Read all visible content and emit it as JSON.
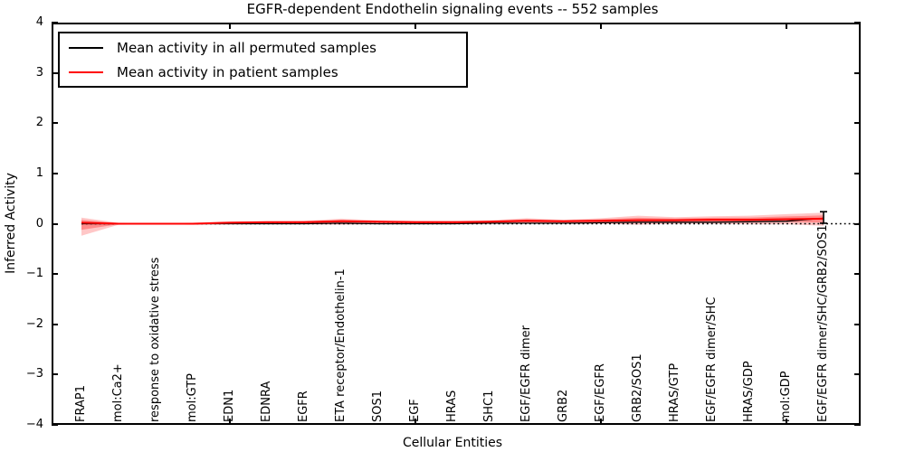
{
  "title": "EGFR-dependent Endothelin signaling events -- 552 samples",
  "axes": {
    "ylabel": "Inferred Activity",
    "xlabel": "Cellular Entities",
    "yticks": [
      "4",
      "3",
      "2",
      "1",
      "0",
      "−1",
      "−2",
      "−3",
      "−4"
    ]
  },
  "legend": {
    "items": [
      {
        "label": "Mean activity in all permuted samples",
        "color": "#000000"
      },
      {
        "label": "Mean activity in patient samples",
        "color": "#ff0000"
      }
    ]
  },
  "colors": {
    "patient_line": "#ff0000",
    "permuted_line": "#000000",
    "band_fill": "#ff0000",
    "axis": "#000000",
    "background": "#ffffff"
  },
  "chart_data": {
    "type": "line",
    "title": "EGFR-dependent Endothelin signaling events -- 552 samples",
    "xlabel": "Cellular Entities",
    "ylabel": "Inferred Activity",
    "ylim": [
      -4,
      4
    ],
    "ytick_values": [
      4,
      3,
      2,
      1,
      0,
      -1,
      -2,
      -3,
      -4
    ],
    "grid": false,
    "legend_position": "upper left",
    "categories": [
      "FRAP1",
      "mol:Ca2+",
      "response to oxidative stress",
      "mol:GTP",
      "EDN1",
      "EDNRA",
      "EGFR",
      "ETA receptor/Endothelin-1",
      "SOS1",
      "EGF",
      "HRAS",
      "SHC1",
      "EGF/EGFR dimer",
      "GRB2",
      "EGF/EGFR",
      "GRB2/SOS1",
      "HRAS/GTP",
      "EGF/EGFR dimer/SHC",
      "HRAS/GDP",
      "mol:GDP",
      "EGF/EGFR dimer/SHC/GRB2/SOS1"
    ],
    "series": [
      {
        "name": "Mean activity in all permuted samples",
        "color": "#000000",
        "values": [
          0.0,
          0.0,
          0.0,
          0.0,
          0.0,
          0.0,
          0.0,
          0.01,
          0.0,
          0.0,
          0.0,
          0.01,
          0.01,
          0.01,
          0.02,
          0.03,
          0.03,
          0.03,
          0.04,
          0.05,
          0.11
        ]
      },
      {
        "name": "Mean activity in patient samples",
        "color": "#ff0000",
        "values": [
          0.02,
          0.0,
          0.0,
          0.0,
          0.02,
          0.03,
          0.03,
          0.05,
          0.04,
          0.03,
          0.03,
          0.04,
          0.06,
          0.05,
          0.06,
          0.07,
          0.07,
          0.08,
          0.08,
          0.09,
          0.1
        ],
        "band_upper": [
          0.12,
          0.02,
          0.01,
          0.02,
          0.05,
          0.05,
          0.06,
          0.1,
          0.07,
          0.06,
          0.06,
          0.07,
          0.11,
          0.08,
          0.11,
          0.16,
          0.13,
          0.15,
          0.16,
          0.19,
          0.22
        ],
        "band_lower": [
          -0.24,
          -0.02,
          -0.01,
          -0.02,
          -0.01,
          -0.01,
          -0.01,
          -0.02,
          -0.01,
          -0.01,
          -0.01,
          0.0,
          0.0,
          0.0,
          0.0,
          -0.02,
          0.0,
          0.0,
          -0.01,
          -0.01,
          -0.04
        ]
      }
    ],
    "zero_line": {
      "style": "dotted",
      "color": "#000000",
      "y": 0
    },
    "last_point_errorbar": {
      "x_index": 20,
      "low": 0.01,
      "high": 0.24,
      "color": "#000000"
    },
    "x_major_tick_indices": [
      4,
      9,
      14,
      19
    ]
  }
}
